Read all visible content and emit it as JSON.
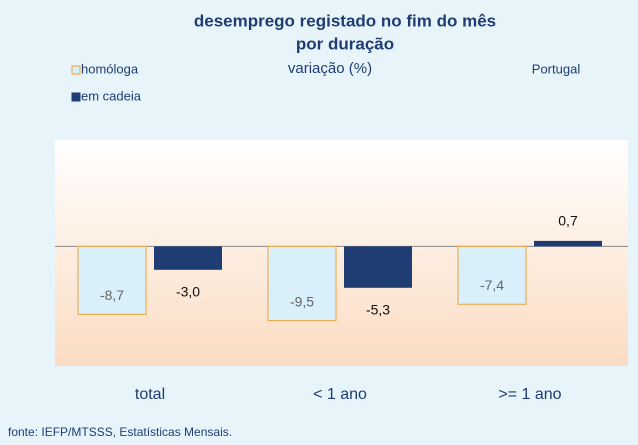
{
  "chart_data": {
    "type": "bar",
    "title": "desemprego registado no fim do mês",
    "title_line2": "por duração",
    "subtitle": "variação (%)",
    "annotation": "Portugal",
    "source": "fonte: IEFP/MTSSS, Estatísticas Mensais.",
    "categories": [
      "total",
      "< 1 ano",
      ">= 1 ano"
    ],
    "series": [
      {
        "name": "homóloga",
        "color": "#d9effa",
        "edge_color": "#e8a33c",
        "values": [
          -8.7,
          -9.5,
          -7.4
        ],
        "value_labels": [
          "-8,7",
          "-9,5",
          "-7,4"
        ]
      },
      {
        "name": "em cadeia",
        "color": "#1f3c73",
        "values": [
          -3.0,
          -5.3,
          0.7
        ],
        "value_labels": [
          "-3,0",
          "-5,3",
          "0,7"
        ]
      }
    ],
    "ylim": [
      -15.3,
      13.6
    ],
    "legend": "top-left"
  }
}
